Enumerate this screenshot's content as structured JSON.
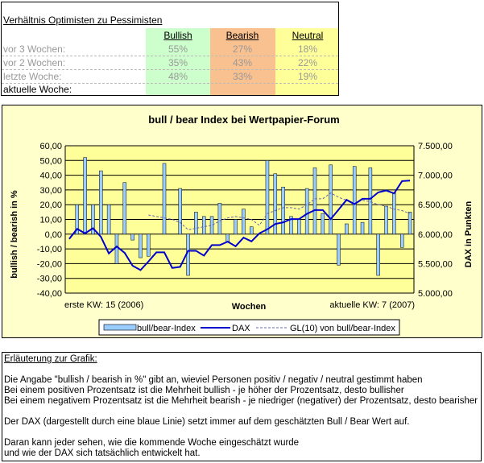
{
  "table": {
    "title": "Verhältnis Optimisten zu Pessimisten",
    "headers": [
      "Bullish",
      "Bearish",
      "Neutral"
    ],
    "colors": {
      "bullish": "#ccffcc",
      "bearish": "#f9c090",
      "neutral": "#ffff99"
    },
    "rows": [
      {
        "label": "vor 3 Wochen:",
        "bullish": "55%",
        "bearish": "27%",
        "neutral": "18%"
      },
      {
        "label": "vor 2 Wochen:",
        "bullish": "35%",
        "bearish": "43%",
        "neutral": "22%"
      },
      {
        "label": "letzte Woche:",
        "bullish": "48%",
        "bearish": "33%",
        "neutral": "19%"
      },
      {
        "label": "aktuelle Woche:",
        "bullish": "",
        "bearish": "",
        "neutral": ""
      }
    ]
  },
  "chart_data": {
    "type": "bar",
    "title": "bull / bear Index bei Wertpapier-Forum",
    "xlabel": "Wochen",
    "x_start_label": "erste KW: 15 (2006)",
    "x_end_label": "aktuelle KW: 7 (2007)",
    "ylabel": "bullish / bearish in %",
    "y2label": "DAX in Punkten",
    "ylim": [
      -40,
      60
    ],
    "y2lim": [
      5000,
      7500
    ],
    "yticks": [
      "60,00",
      "50,00",
      "40,00",
      "30,00",
      "20,00",
      "10,00",
      "0,00",
      "-10,00",
      "-20,00",
      "-30,00",
      "-40,00"
    ],
    "y2ticks": [
      "7.500,00",
      "7.000,00",
      "6.500,00",
      "6.000,00",
      "5.500,00",
      "5.000,00"
    ],
    "grid": true,
    "legend_position": "bottom",
    "series": [
      {
        "name": "bull/bear-Index",
        "kind": "bar",
        "color": "#99ccff",
        "values": [
          0,
          20,
          52,
          20,
          43,
          20,
          -20,
          35,
          -4,
          -16,
          -15,
          0,
          48,
          0,
          31,
          -28,
          15,
          12,
          12,
          21,
          -5,
          10,
          17,
          5,
          0,
          50,
          41,
          32,
          12,
          10,
          31,
          45,
          14,
          47,
          -21,
          7,
          46,
          8,
          45,
          -28,
          19,
          28,
          -9,
          15
        ]
      },
      {
        "name": "DAX",
        "kind": "line",
        "axis": "right",
        "color": "#0000cc",
        "values": [
          5918,
          6090,
          6014,
          6100,
          5955,
          5673,
          5791,
          5682,
          5464,
          5391,
          5536,
          5691,
          5691,
          5427,
          5445,
          5718,
          5718,
          5636,
          5814,
          5814,
          5873,
          5795,
          5941,
          5877,
          6014,
          6082,
          6173,
          6200,
          6255,
          6255,
          6345,
          6409,
          6409,
          6255,
          6418,
          6582,
          6509,
          6600,
          6600,
          6709,
          6741,
          6691,
          6900,
          6909
        ]
      },
      {
        "name": "GL(10) von bull/bear-Index",
        "kind": "dashed-line",
        "color": "#6666aa",
        "values": [
          null,
          null,
          null,
          null,
          null,
          null,
          null,
          null,
          null,
          null,
          13,
          12,
          11,
          10,
          8,
          3,
          4,
          5,
          6,
          9,
          11,
          12,
          11,
          10,
          6,
          14,
          16,
          18,
          18,
          17,
          20,
          24,
          24,
          28,
          25,
          23,
          21,
          23,
          22,
          20,
          19,
          17,
          16,
          14
        ]
      }
    ]
  },
  "explanation": {
    "title": "Erläuterung zur Grafik:",
    "lines": [
      "Die Angabe \"bullish / bearish in %\" gibt an, wieviel Personen positiv / negativ / neutral gestimmt haben",
      "Bei einem positiven Prozentsatz ist die Mehrheit bullish - je höher der Prozentsatz, desto bullisher",
      "Bei einem negativem Prozentsatz ist die Mehrheit bearish - je niedriger (negativer) der Prozentsatz, desto bearisher",
      "Der DAX (dargestellt durch eine blaue Linie) setzt immer auf dem geschätzten Bull / Bear Wert auf.",
      "Daran kann jeder sehen, wie die kommende Woche eingeschätzt wurde",
      "und wie der DAX sich tatsächlich entwickelt hat."
    ]
  }
}
